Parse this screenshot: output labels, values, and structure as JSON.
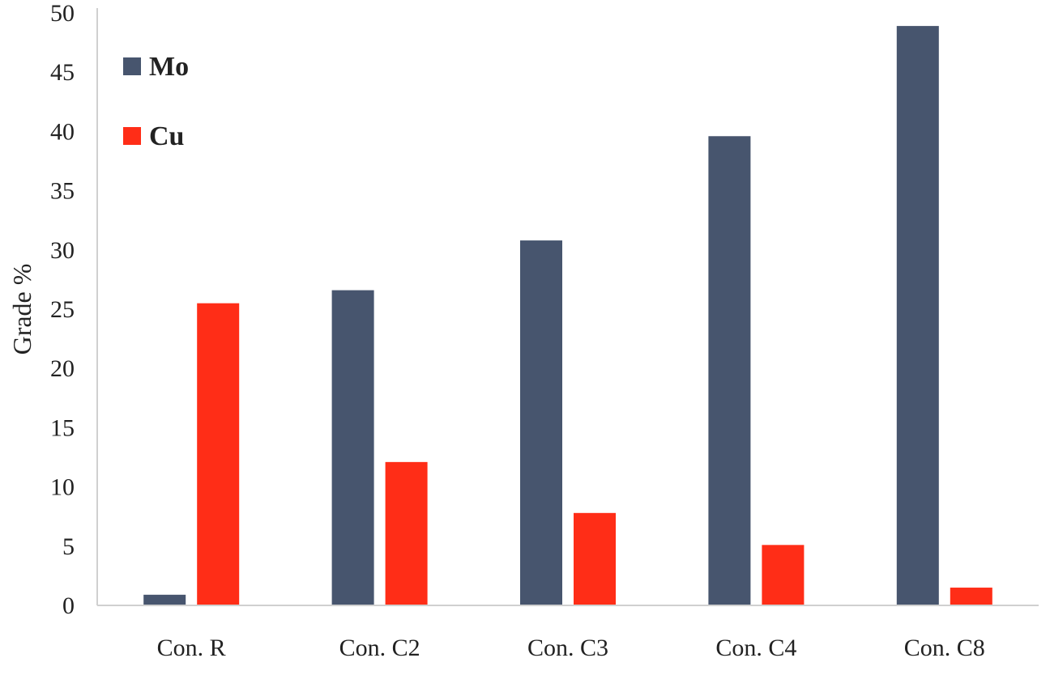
{
  "chart_data": {
    "type": "bar",
    "title": "",
    "xlabel": "",
    "ylabel": "Grade %",
    "ylim": [
      0,
      50
    ],
    "yticks": [
      0,
      5,
      10,
      15,
      20,
      25,
      30,
      35,
      40,
      45,
      50
    ],
    "grid": false,
    "legend_position": "top-left",
    "categories": [
      "Con. R",
      "Con. C2",
      "Con. C3",
      "Con. C4",
      "Con. C8"
    ],
    "series": [
      {
        "name": "Mo",
        "color": "#47556e",
        "values": [
          0.9,
          26.6,
          30.8,
          39.6,
          48.9
        ]
      },
      {
        "name": "Cu",
        "color": "#ff2d17",
        "values": [
          25.5,
          12.1,
          7.8,
          5.1,
          1.5
        ]
      }
    ]
  }
}
